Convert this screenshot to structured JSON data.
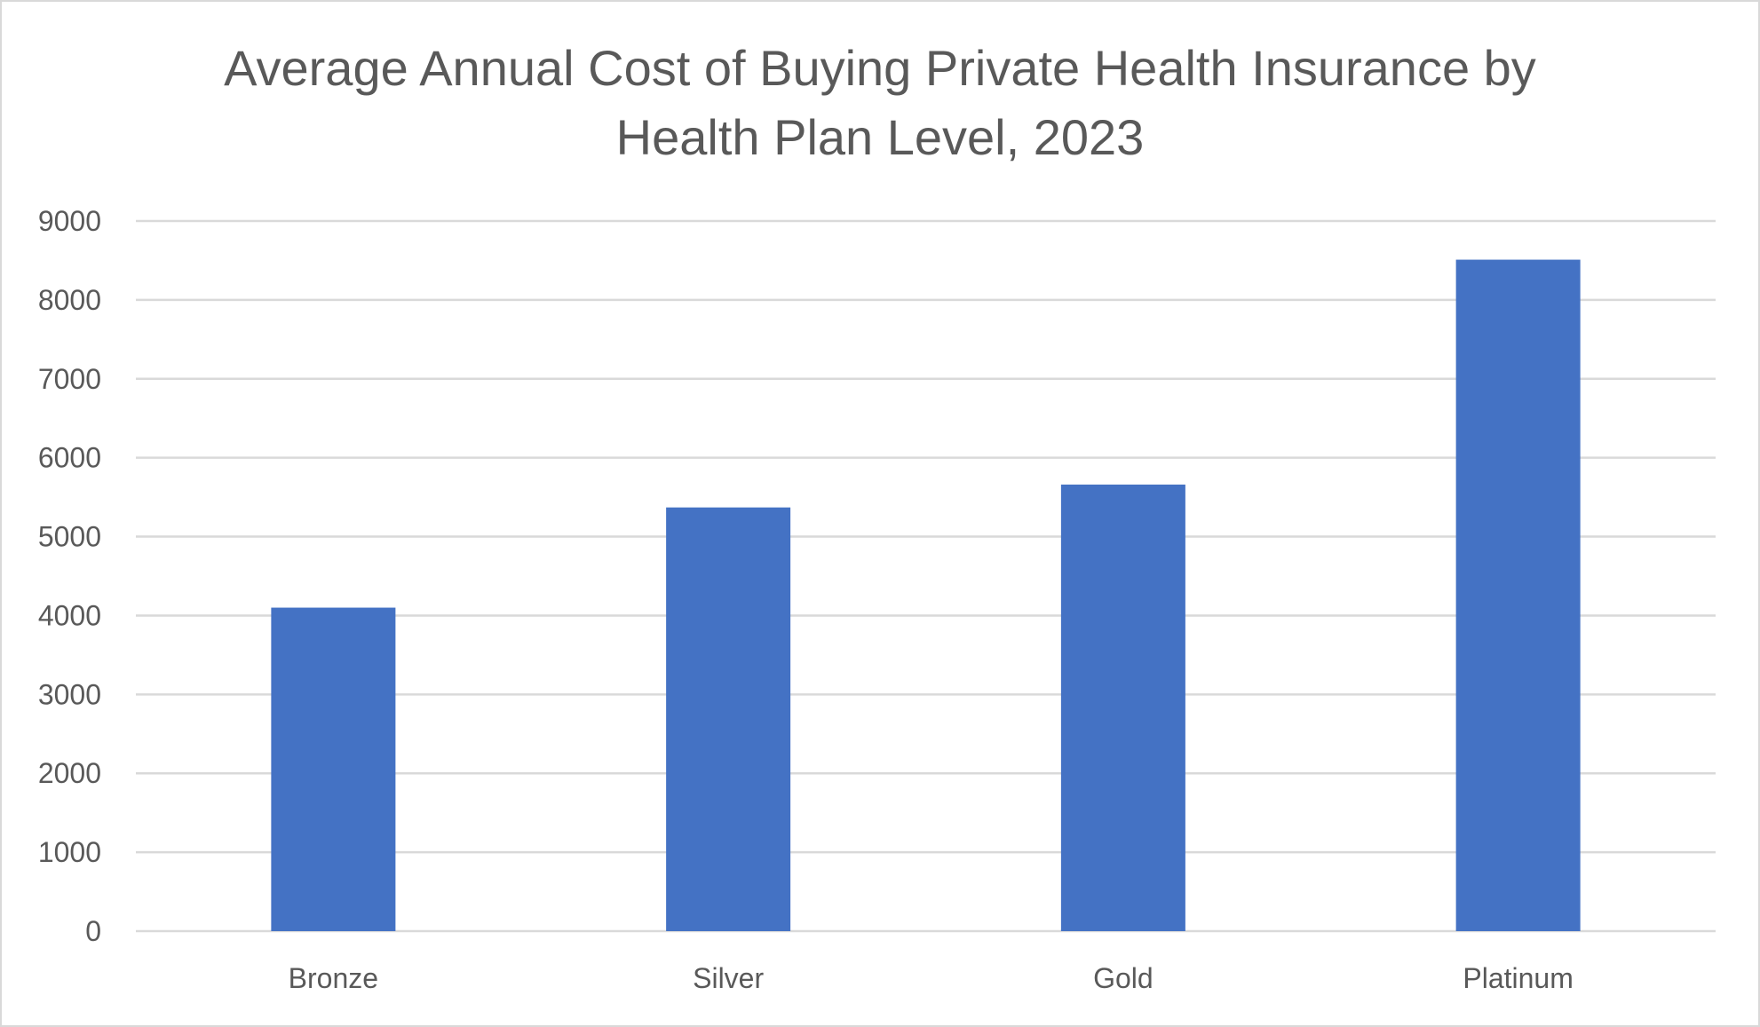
{
  "chart_data": {
    "type": "bar",
    "title": "Average Annual Cost of Buying Private Health Insurance by Health Plan Level, 2023",
    "title_lines": [
      "Average Annual Cost of Buying Private Health Insurance by",
      "Health Plan Level, 2023"
    ],
    "categories": [
      "Bronze",
      "Silver",
      "Gold",
      "Platinum"
    ],
    "values": [
      4100,
      5370,
      5660,
      8510
    ],
    "xlabel": "",
    "ylabel": "",
    "ylim": [
      0,
      9000
    ],
    "yticks": [
      "0",
      "1000",
      "2000",
      "3000",
      "4000",
      "5000",
      "6000",
      "7000",
      "8000",
      "9000"
    ],
    "grid": true,
    "legend": "none",
    "bar_color": "#4472c4",
    "grid_color": "#d9d9d9",
    "text_color": "#595959"
  }
}
